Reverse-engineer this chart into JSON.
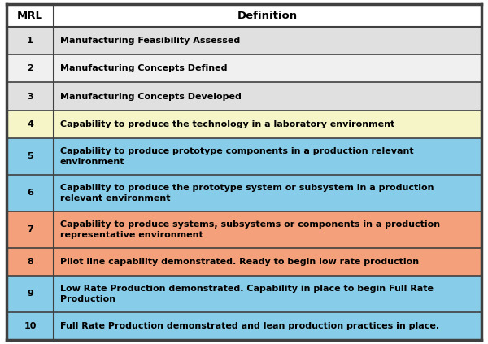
{
  "title_mrl": "MRL",
  "title_def": "Definition",
  "rows": [
    {
      "mrl": "1",
      "definition": "Manufacturing Feasibility Assessed",
      "bg": "#e0e0e0",
      "lines": 1
    },
    {
      "mrl": "2",
      "definition": "Manufacturing Concepts Defined",
      "bg": "#f0f0f0",
      "lines": 1
    },
    {
      "mrl": "3",
      "definition": "Manufacturing Concepts Developed",
      "bg": "#e0e0e0",
      "lines": 1
    },
    {
      "mrl": "4",
      "definition": "Capability to produce the technology in a laboratory environment",
      "bg": "#f5f5c8",
      "lines": 1
    },
    {
      "mrl": "5",
      "definition": "Capability to produce prototype components in a production relevant\nenvironment",
      "bg": "#87cce8",
      "lines": 2
    },
    {
      "mrl": "6",
      "definition": "Capability to produce the prototype system or subsystem in a production\nrelevant environment",
      "bg": "#87cce8",
      "lines": 2
    },
    {
      "mrl": "7",
      "definition": "Capability to produce systems, subsystems or components in a production\nrepresentative environment",
      "bg": "#f4a07a",
      "lines": 2
    },
    {
      "mrl": "8",
      "definition": "Pilot line capability demonstrated. Ready to begin low rate production",
      "bg": "#f4a07a",
      "lines": 1
    },
    {
      "mrl": "9",
      "definition": "Low Rate Production demonstrated. Capability in place to begin Full Rate\nProduction",
      "bg": "#87cce8",
      "lines": 2
    },
    {
      "mrl": "10",
      "definition": "Full Rate Production demonstrated and lean production practices in place.",
      "bg": "#87cce8",
      "lines": 1
    }
  ],
  "header_bg": "#ffffff",
  "border_color": "#404040",
  "text_color": "#000000",
  "font_size": 8.0,
  "header_font_size": 9.5,
  "fig_width": 6.0,
  "fig_height": 4.23,
  "dpi": 100
}
